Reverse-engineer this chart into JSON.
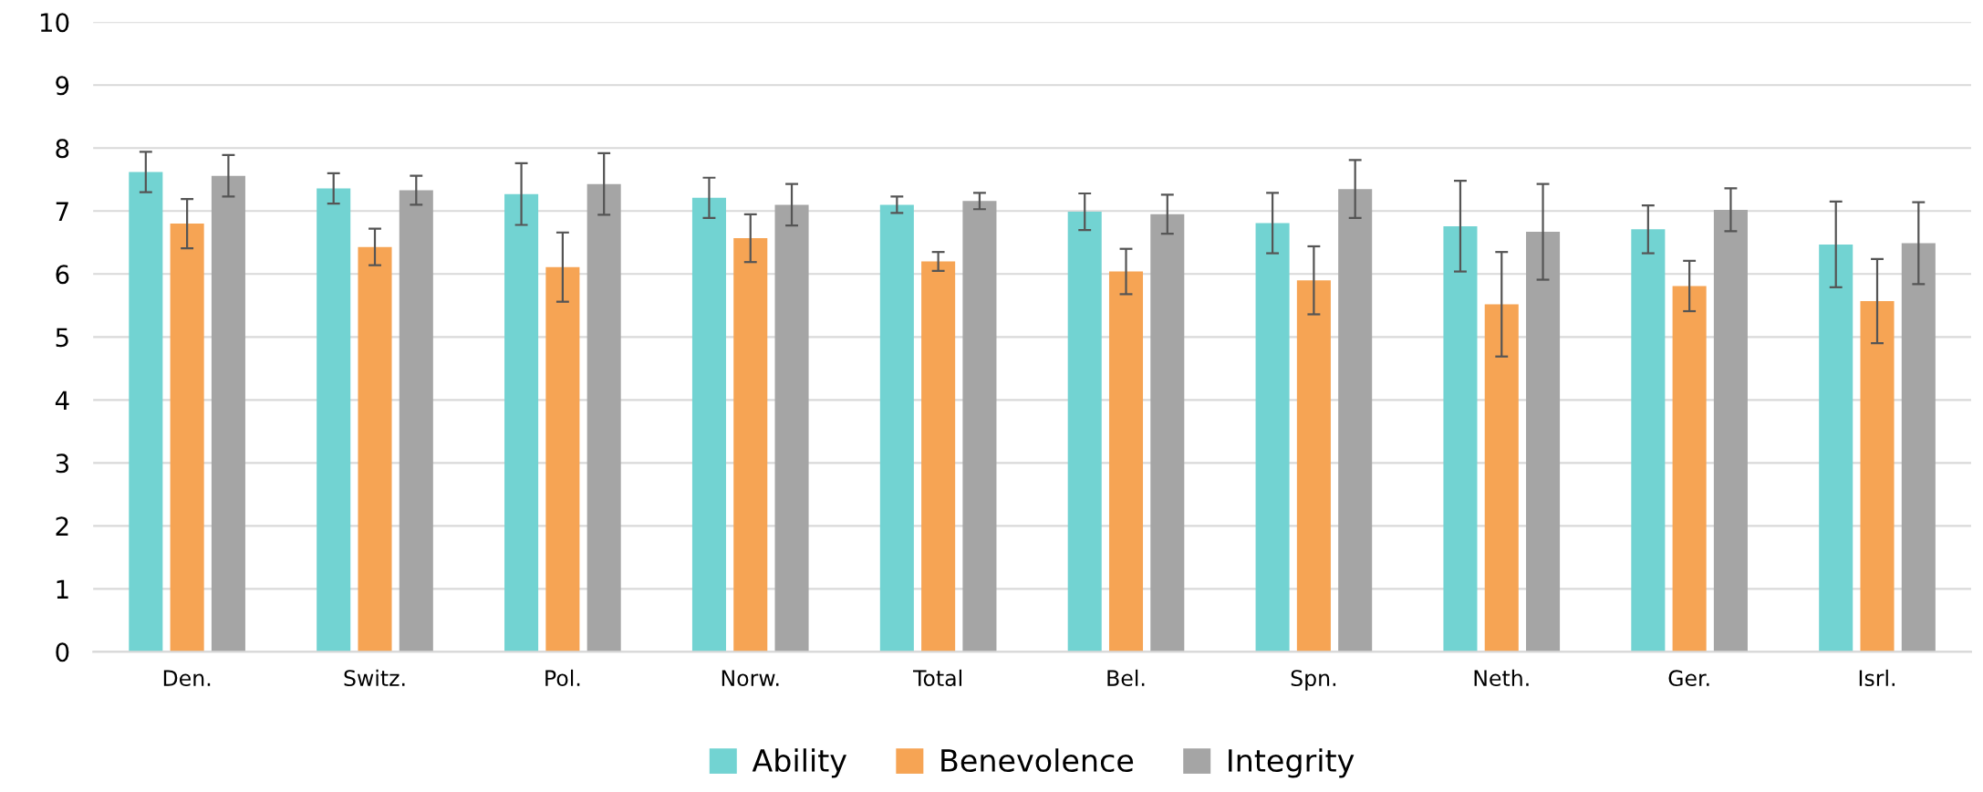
{
  "chart_data": {
    "type": "bar",
    "categories": [
      "Den.",
      "Switz.",
      "Pol.",
      "Norw.",
      "Total",
      "Bel.",
      "Spn.",
      "Neth.",
      "Ger.",
      "Isrl."
    ],
    "series": [
      {
        "name": "Ability",
        "color": "#72d3d2",
        "values": [
          7.62,
          7.36,
          7.27,
          7.21,
          7.1,
          6.99,
          6.81,
          6.76,
          6.71,
          6.47
        ],
        "errors": [
          0.32,
          0.24,
          0.49,
          0.32,
          0.13,
          0.29,
          0.48,
          0.72,
          0.38,
          0.68
        ]
      },
      {
        "name": "Benevolence",
        "color": "#f6a454",
        "values": [
          6.8,
          6.43,
          6.11,
          6.57,
          6.2,
          6.04,
          5.9,
          5.52,
          5.81,
          5.57
        ],
        "errors": [
          0.39,
          0.29,
          0.55,
          0.38,
          0.15,
          0.36,
          0.54,
          0.83,
          0.4,
          0.67
        ]
      },
      {
        "name": "Integrity",
        "color": "#a5a5a5",
        "values": [
          7.56,
          7.33,
          7.43,
          7.1,
          7.16,
          6.95,
          7.35,
          6.67,
          7.02,
          6.49
        ],
        "errors": [
          0.33,
          0.23,
          0.49,
          0.33,
          0.13,
          0.31,
          0.46,
          0.76,
          0.34,
          0.65
        ]
      }
    ],
    "ylim": [
      0,
      10
    ],
    "yticks": [
      0,
      1,
      2,
      3,
      4,
      5,
      6,
      7,
      8,
      9,
      10
    ],
    "grid": "y",
    "legend": "bottom"
  }
}
